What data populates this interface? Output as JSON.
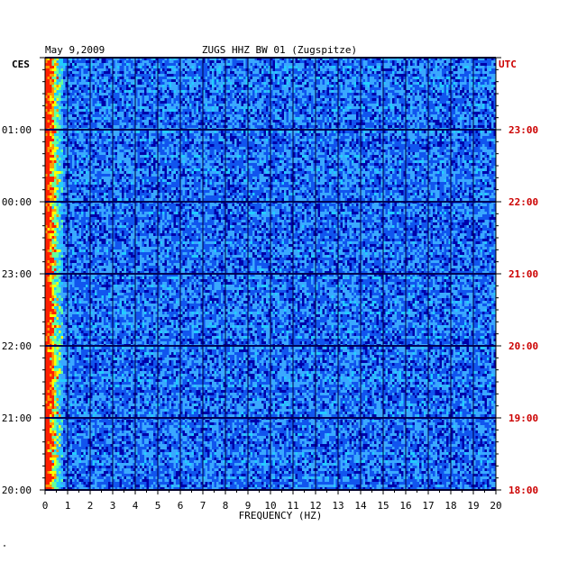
{
  "chart_data": {
    "type": "heatmap",
    "date": "May 9,2009",
    "title": "ZUGS HHZ BW 01 (Zugspitze)",
    "left_timezone": "CES",
    "right_timezone": "UTC",
    "xlabel": "FREQUENCY (HZ)",
    "xlim": [
      0,
      20
    ],
    "x_ticks": [
      "0",
      "1",
      "2",
      "3",
      "4",
      "5",
      "6",
      "7",
      "8",
      "9",
      "10",
      "11",
      "12",
      "13",
      "14",
      "15",
      "16",
      "17",
      "18",
      "19",
      "20"
    ],
    "left_time_labels": [
      "01:00",
      "00:00",
      "23:00",
      "22:00",
      "21:00",
      "20:00"
    ],
    "right_time_labels": [
      "23:00",
      "22:00",
      "21:00",
      "20:00",
      "19:00",
      "18:00"
    ],
    "colors": {
      "background": "#0000aa",
      "low": "#0033cc",
      "mid": "#3aa8ff",
      "high": "#ffff00",
      "peak": "#ff2000",
      "time_label_right": "#cc0000",
      "title_text": "#000000"
    },
    "intensity_note_values": {
      "low_frequency_band_hz": [
        0,
        0.8
      ]
    }
  },
  "footer": {
    "mark": "\""
  }
}
